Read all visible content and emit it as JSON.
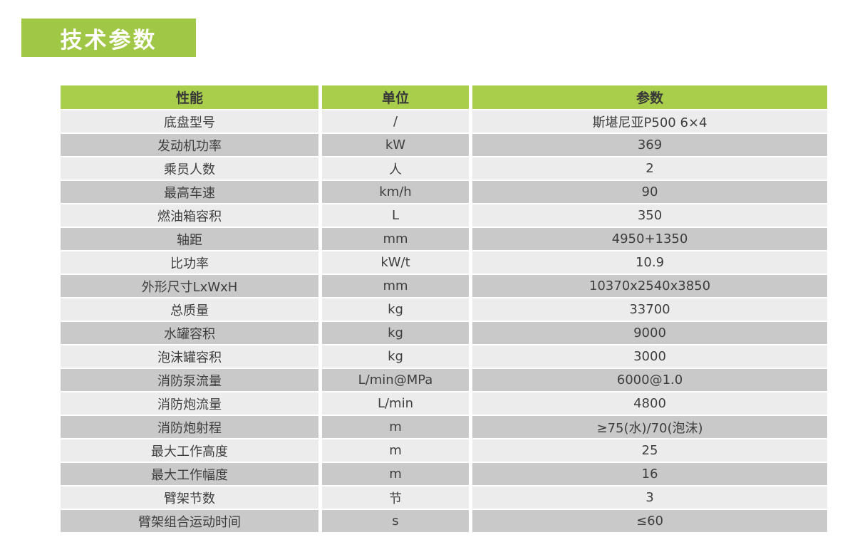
{
  "section": {
    "title": "技术参数"
  },
  "colors": {
    "badge_green": "#a0c846",
    "header_green": "#a8ce4c",
    "row_light": "#ececec",
    "row_dark": "#c9c9c9",
    "header_text": "#383838",
    "cell_text": "#3e3e3e"
  },
  "table": {
    "headers": [
      "性能",
      "单位",
      "参数"
    ],
    "rows": [
      {
        "name": "底盘型号",
        "unit": "/",
        "value": "斯堪尼亚P500 6×4"
      },
      {
        "name": "发动机功率",
        "unit": "kW",
        "value": "369"
      },
      {
        "name": "乘员人数",
        "unit": "人",
        "value": "2"
      },
      {
        "name": "最高车速",
        "unit": "km/h",
        "value": "90"
      },
      {
        "name": "燃油箱容积",
        "unit": "L",
        "value": "350"
      },
      {
        "name": "轴距",
        "unit": "mm",
        "value": "4950+1350"
      },
      {
        "name": "比功率",
        "unit": "kW/t",
        "value": "10.9"
      },
      {
        "name": "外形尺寸LxWxH",
        "unit": "mm",
        "value": "10370x2540x3850"
      },
      {
        "name": "总质量",
        "unit": "kg",
        "value": "33700"
      },
      {
        "name": "水罐容积",
        "unit": "kg",
        "value": "9000"
      },
      {
        "name": "泡沫罐容积",
        "unit": "kg",
        "value": "3000"
      },
      {
        "name": "消防泵流量",
        "unit": "L/min@MPa",
        "value": "6000@1.0"
      },
      {
        "name": "消防炮流量",
        "unit": "L/min",
        "value": "4800"
      },
      {
        "name": "消防炮射程",
        "unit": "m",
        "value": "≥75(水)/70(泡沫)"
      },
      {
        "name": "最大工作高度",
        "unit": "m",
        "value": "25"
      },
      {
        "name": "最大工作幅度",
        "unit": "m",
        "value": "16"
      },
      {
        "name": "臂架节数",
        "unit": "节",
        "value": "3"
      },
      {
        "name": "臂架组合运动时间",
        "unit": "s",
        "value": "≤60"
      }
    ]
  }
}
